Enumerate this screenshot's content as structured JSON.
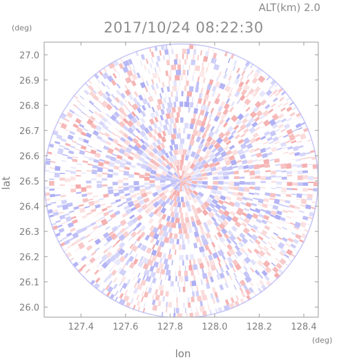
{
  "chart_data": {
    "type": "heatmap",
    "title": "2017/10/24 08:22:30",
    "altitude_label": "ALT(km)",
    "altitude_value": "2.0",
    "xlabel": "lon",
    "ylabel": "lat",
    "x_unit": "(deg)",
    "y_unit": "(deg)",
    "xlim": [
      127.235,
      128.465
    ],
    "ylim": [
      25.96,
      27.05
    ],
    "x_ticks": [
      127.4,
      127.6,
      127.8,
      128.0,
      128.2,
      128.4
    ],
    "x_tick_labels": [
      "127.4",
      "127.6",
      "127.8",
      "128.0",
      "128.2",
      "128.4"
    ],
    "y_ticks": [
      26.0,
      26.1,
      26.2,
      26.3,
      26.4,
      26.5,
      26.6,
      26.7,
      26.8,
      26.9,
      27.0
    ],
    "y_tick_labels": [
      "26.0",
      "26.1",
      "26.2",
      "26.3",
      "26.4",
      "26.5",
      "26.6",
      "26.7",
      "26.8",
      "26.9",
      "27.0"
    ],
    "radar_center": [
      127.85,
      26.5
    ],
    "colors": {
      "positive": "#f08a8a",
      "negative": "#8c8cf0",
      "neutral": "#ffffff",
      "axis": "#9a9a9a"
    }
  }
}
